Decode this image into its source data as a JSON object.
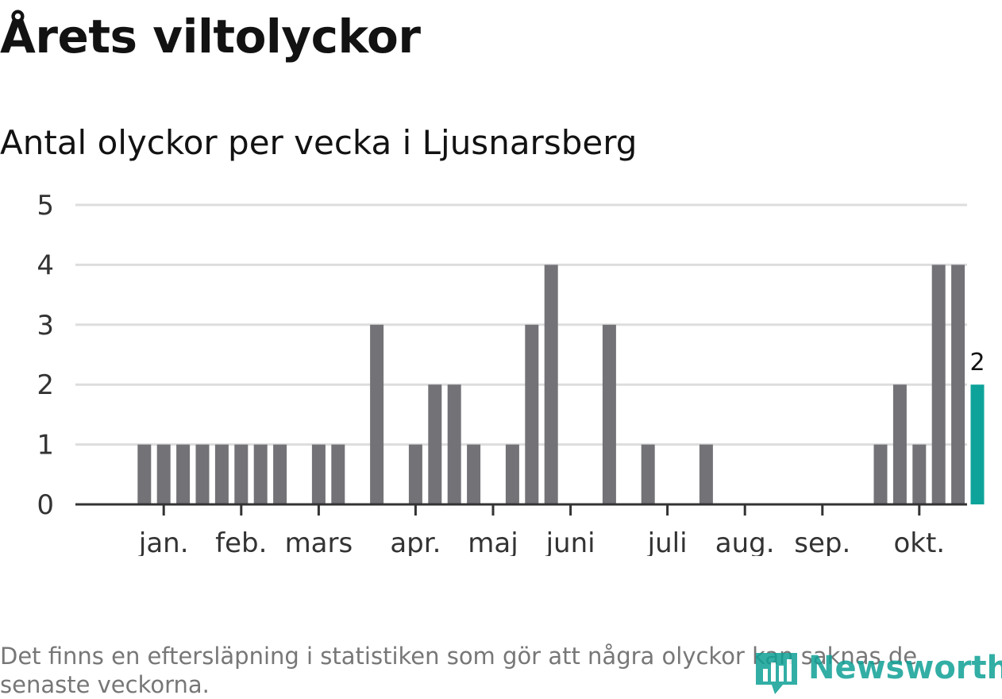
{
  "header": {
    "title": "Årets viltolyckor",
    "subtitle": "Antal olyckor per vecka i Ljusnarsberg"
  },
  "footer": {
    "note": "Det finns en eftersläpning i statistiken som gör att några olyckor kan saknas de senaste veckorna.",
    "logo_text": "Newsworthy"
  },
  "colors": {
    "bar": "#737277",
    "highlight": "#0ea39a",
    "grid": "#dddddd",
    "axis": "#333333",
    "logo": "#0fa196"
  },
  "chart_data": {
    "type": "bar",
    "title": "Antal olyckor per vecka i Ljusnarsberg",
    "xlabel": "",
    "ylabel": "",
    "ylim": [
      0,
      5
    ],
    "yticks": [
      0,
      1,
      2,
      3,
      4,
      5
    ],
    "grid": true,
    "weeks": [
      1,
      2,
      3,
      4,
      5,
      6,
      7,
      8,
      9,
      10,
      11,
      12,
      13,
      14,
      15,
      16,
      17,
      18,
      19,
      20,
      21,
      22,
      23,
      24,
      25,
      26,
      27,
      28,
      29,
      30,
      31,
      32,
      33,
      34,
      35,
      36,
      37,
      38,
      39,
      40,
      41,
      42,
      43,
      44,
      45,
      46
    ],
    "values": [
      0,
      0,
      1,
      1,
      1,
      1,
      1,
      1,
      1,
      1,
      0,
      1,
      1,
      0,
      3,
      0,
      1,
      2,
      2,
      1,
      0,
      1,
      3,
      4,
      0,
      0,
      3,
      0,
      1,
      0,
      0,
      1,
      0,
      0,
      0,
      0,
      0,
      0,
      0,
      0,
      1,
      2,
      1,
      4,
      4,
      2
    ],
    "highlight_index": 45,
    "highlight_label": "2",
    "month_labels": [
      "jan.",
      "feb.",
      "mars",
      "apr.",
      "maj",
      "juni",
      "juli",
      "aug.",
      "sep.",
      "okt."
    ],
    "month_tick_positions": [
      3.5,
      7.5,
      11.5,
      16.5,
      20.5,
      24.5,
      29.5,
      33.5,
      37.5,
      42.5
    ]
  }
}
